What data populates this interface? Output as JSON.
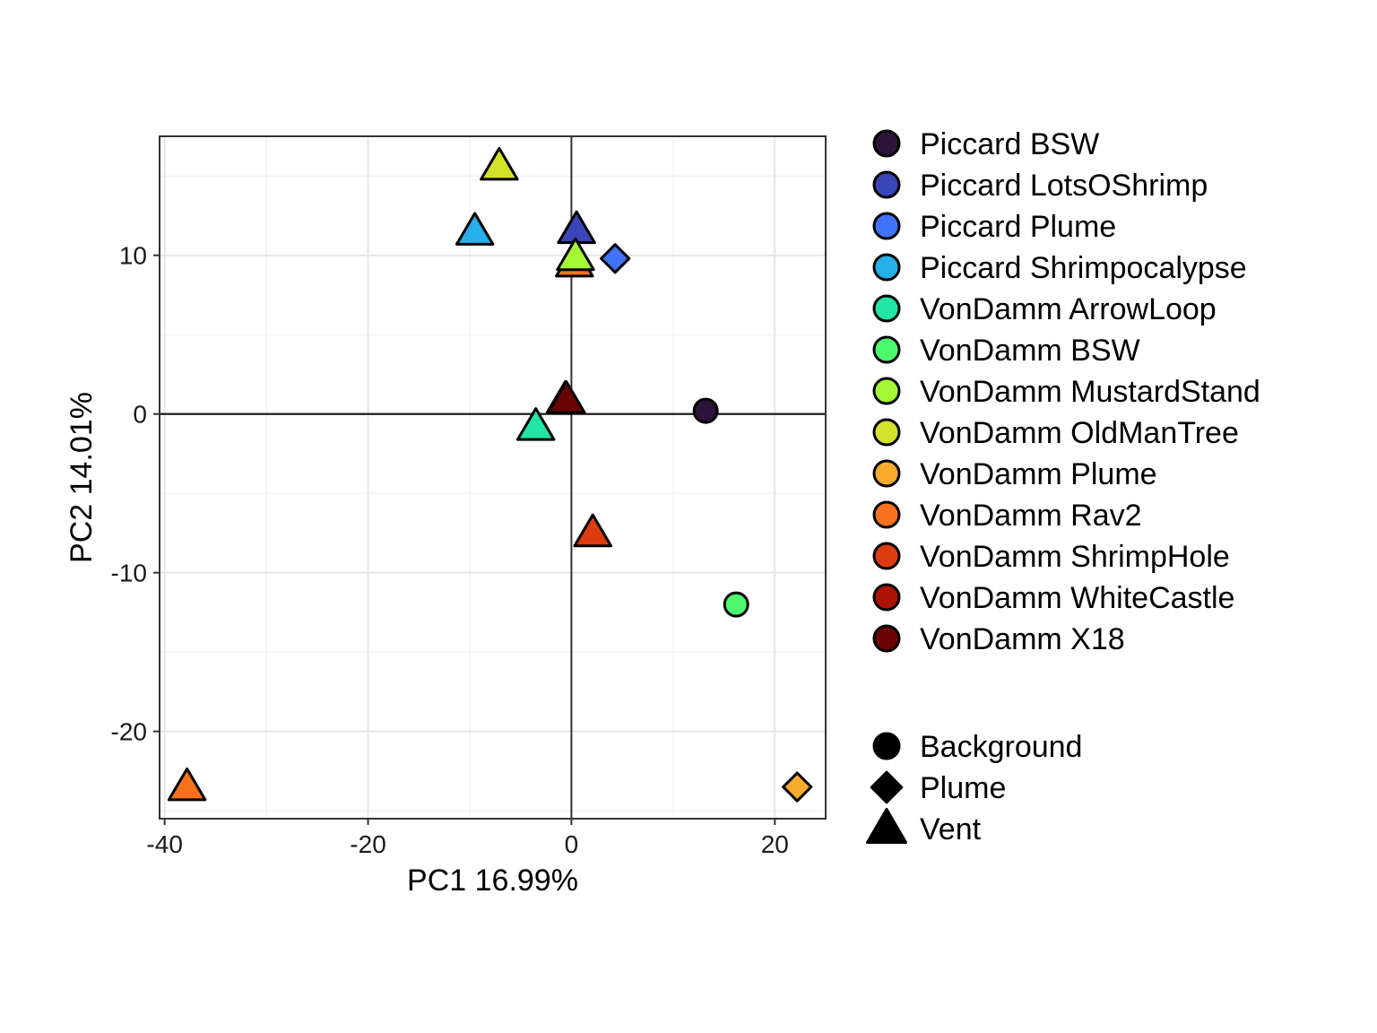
{
  "chart_data": {
    "type": "scatter",
    "xlabel": "PC1 16.99%",
    "ylabel": "PC2 14.01%",
    "xlim": [
      -40.5,
      25
    ],
    "ylim": [
      -25.5,
      17.5
    ],
    "x_ticks": [
      {
        "value": -40,
        "label": "-40"
      },
      {
        "value": -20,
        "label": "-20"
      },
      {
        "value": 0,
        "label": "0"
      },
      {
        "value": 20,
        "label": "20"
      }
    ],
    "y_ticks": [
      {
        "value": 10,
        "label": "10"
      },
      {
        "value": 0,
        "label": "0"
      },
      {
        "value": -10,
        "label": "-10"
      },
      {
        "value": -20,
        "label": "-20"
      }
    ],
    "grid": true,
    "reference_lines": {
      "x": 0,
      "y": 0
    },
    "legend_placement": "right",
    "site_legend": [
      {
        "name": "Piccard BSW",
        "color": "#2b1339"
      },
      {
        "name": "Piccard LotsOShrimp",
        "color": "#3a45b8"
      },
      {
        "name": "Piccard Plume",
        "color": "#4073fa"
      },
      {
        "name": "Piccard Shrimpocalypse",
        "color": "#26b0ea"
      },
      {
        "name": "VonDamm ArrowLoop",
        "color": "#22e5a6"
      },
      {
        "name": "VonDamm BSW",
        "color": "#4dfa6d"
      },
      {
        "name": "VonDamm MustardStand",
        "color": "#a4f934"
      },
      {
        "name": "VonDamm OldManTree",
        "color": "#d3e22b"
      },
      {
        "name": "VonDamm Plume",
        "color": "#f8ab2f"
      },
      {
        "name": "VonDamm Rav2",
        "color": "#f8711f"
      },
      {
        "name": "VonDamm ShrimpHole",
        "color": "#dd3c10"
      },
      {
        "name": "VonDamm WhiteCastle",
        "color": "#ad1204"
      },
      {
        "name": "VonDamm X18",
        "color": "#6a0303"
      }
    ],
    "shape_legend": [
      {
        "name": "Background",
        "shape": "circle"
      },
      {
        "name": "Plume",
        "shape": "diamond"
      },
      {
        "name": "Vent",
        "shape": "triangle"
      }
    ],
    "points": [
      {
        "site": "Piccard BSW",
        "type": "Background",
        "x": 13.2,
        "y": 0.2
      },
      {
        "site": "VonDamm BSW",
        "type": "Background",
        "x": 16.2,
        "y": -12.0
      },
      {
        "site": "Piccard Plume",
        "type": "Plume",
        "x": 4.3,
        "y": 9.8
      },
      {
        "site": "VonDamm Plume",
        "type": "Plume",
        "x": 22.2,
        "y": -23.5
      },
      {
        "site": "VonDamm OldManTree",
        "type": "Vent",
        "x": -7.1,
        "y": 15.6
      },
      {
        "site": "Piccard Shrimpocalypse",
        "type": "Vent",
        "x": -9.5,
        "y": 11.5
      },
      {
        "site": "Piccard LotsOShrimp",
        "type": "Vent",
        "x": 0.5,
        "y": 11.6
      },
      {
        "site": "VonDamm Rav2",
        "type": "Vent",
        "x": 0.3,
        "y": 9.5
      },
      {
        "site": "VonDamm MustardStand",
        "type": "Vent",
        "x": 0.4,
        "y": 9.9
      },
      {
        "site": "VonDamm WhiteCastle",
        "type": "Vent",
        "x": -0.6,
        "y": 0.9
      },
      {
        "site": "VonDamm X18",
        "type": "Vent",
        "x": -0.5,
        "y": 0.9
      },
      {
        "site": "VonDamm ArrowLoop",
        "type": "Vent",
        "x": -3.5,
        "y": -0.8
      },
      {
        "site": "VonDamm ShrimpHole",
        "type": "Vent",
        "x": 2.1,
        "y": -7.5
      },
      {
        "site": "VonDamm Rav2",
        "type": "Vent",
        "x": -37.8,
        "y": -23.5
      }
    ]
  }
}
